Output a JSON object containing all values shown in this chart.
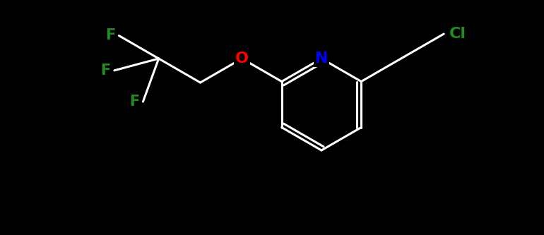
{
  "background_color": "#000000",
  "atom_colors": {
    "N": "#0000FF",
    "O": "#FF0000",
    "F": "#228B22",
    "Cl": "#228B22"
  },
  "bond_width": 2.2,
  "fig_width": 7.7,
  "fig_height": 3.33,
  "dpi": 100,
  "font_size": 15
}
